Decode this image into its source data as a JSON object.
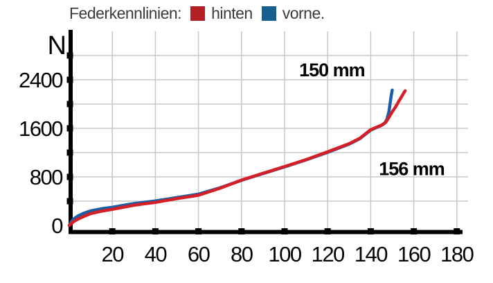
{
  "legend": {
    "title": "Federkennlinien:",
    "series": [
      {
        "label": "hinten",
        "color": "#b21f24"
      },
      {
        "label": "vorne.",
        "color": "#15608f"
      }
    ]
  },
  "chart_data": {
    "type": "line",
    "title": "Federkennlinien",
    "xlabel": "",
    "ylabel": "N",
    "xlim": [
      0,
      185
    ],
    "ylim": [
      0,
      2900
    ],
    "grid": true,
    "grid_color": "#c8c8c8",
    "axis_color": "#000000",
    "x_ticks": [
      20,
      40,
      60,
      80,
      100,
      120,
      140,
      160,
      180
    ],
    "y_tick_marks": [
      400,
      800,
      1200,
      1600,
      2000,
      2400,
      2800
    ],
    "y_tick_labels": [
      0,
      800,
      1600,
      2400
    ],
    "annotations": [
      {
        "text": "150 mm",
        "x": 122,
        "y": 2570
      },
      {
        "text": "156 mm",
        "x": 159,
        "y": 945
      }
    ],
    "series": [
      {
        "name": "vorne",
        "color": "#1b5ea6",
        "points": [
          [
            0,
            0
          ],
          [
            1,
            60
          ],
          [
            2,
            105
          ],
          [
            4,
            155
          ],
          [
            7,
            205
          ],
          [
            10,
            240
          ],
          [
            15,
            275
          ],
          [
            20,
            300
          ],
          [
            25,
            330
          ],
          [
            30,
            360
          ],
          [
            35,
            382
          ],
          [
            40,
            403
          ],
          [
            50,
            460
          ],
          [
            60,
            515
          ],
          [
            70,
            620
          ],
          [
            80,
            743
          ],
          [
            90,
            855
          ],
          [
            100,
            965
          ],
          [
            110,
            1080
          ],
          [
            120,
            1205
          ],
          [
            130,
            1340
          ],
          [
            135,
            1430
          ],
          [
            140,
            1570
          ],
          [
            143,
            1618
          ],
          [
            145,
            1648
          ],
          [
            146.5,
            1685
          ],
          [
            147.5,
            1745
          ],
          [
            148.5,
            1880
          ],
          [
            149,
            2010
          ],
          [
            149.5,
            2130
          ],
          [
            150,
            2230
          ]
        ]
      },
      {
        "name": "hinten",
        "color": "#d41f26",
        "points": [
          [
            0,
            0
          ],
          [
            1,
            30
          ],
          [
            2,
            62
          ],
          [
            4,
            103
          ],
          [
            7,
            152
          ],
          [
            10,
            195
          ],
          [
            15,
            235
          ],
          [
            20,
            265
          ],
          [
            25,
            300
          ],
          [
            30,
            332
          ],
          [
            35,
            357
          ],
          [
            40,
            380
          ],
          [
            50,
            442
          ],
          [
            60,
            497
          ],
          [
            70,
            612
          ],
          [
            80,
            748
          ],
          [
            90,
            860
          ],
          [
            100,
            970
          ],
          [
            110,
            1085
          ],
          [
            120,
            1212
          ],
          [
            130,
            1348
          ],
          [
            135,
            1437
          ],
          [
            140,
            1578
          ],
          [
            143,
            1622
          ],
          [
            145,
            1652
          ],
          [
            147,
            1700
          ],
          [
            148.5,
            1782
          ],
          [
            150,
            1872
          ],
          [
            151.5,
            1952
          ],
          [
            153,
            2042
          ],
          [
            154.5,
            2132
          ],
          [
            155.5,
            2192
          ],
          [
            156,
            2218
          ]
        ]
      }
    ]
  }
}
